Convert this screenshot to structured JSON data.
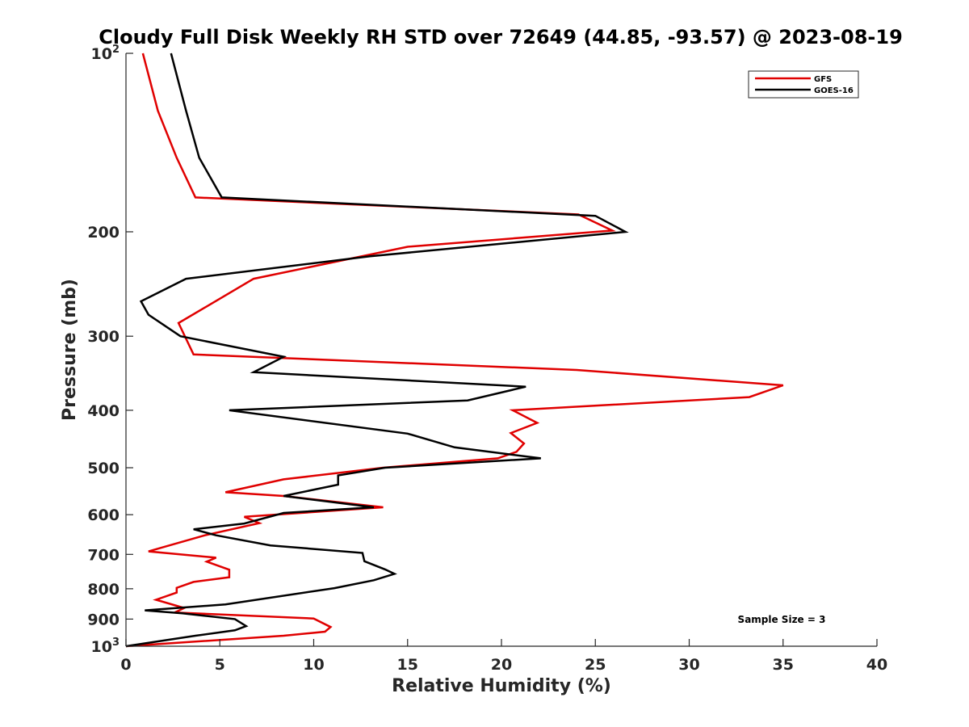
{
  "chart_data": {
    "type": "line",
    "title": "Cloudy Full Disk Weekly RH STD over 72649 (44.85, -93.57) @ 2023-08-19",
    "xlabel": "Relative Humidity (%)",
    "ylabel": "Pressure (mb)",
    "xlim": [
      0,
      40
    ],
    "ylim": [
      100,
      1000
    ],
    "y_scale": "log",
    "y_reversed": true,
    "grid": false,
    "legend_position": "top-right",
    "x_ticks": [
      "0",
      "5",
      "10",
      "15",
      "20",
      "25",
      "30",
      "35",
      "40"
    ],
    "y_ticks": [
      {
        "value": 100,
        "base": "10",
        "exp": "2"
      },
      {
        "value": 200,
        "label": "200"
      },
      {
        "value": 300,
        "label": "300"
      },
      {
        "value": 400,
        "label": "400"
      },
      {
        "value": 500,
        "label": "500"
      },
      {
        "value": 600,
        "label": "600"
      },
      {
        "value": 700,
        "label": "700"
      },
      {
        "value": 800,
        "label": "800"
      },
      {
        "value": 900,
        "label": "900"
      },
      {
        "value": 1000,
        "base": "10",
        "exp": "3"
      }
    ],
    "annotation": "Sample Size = 3",
    "series": [
      {
        "name": "GFS",
        "color": "#e00000",
        "points": [
          [
            0.9,
            100
          ],
          [
            1.7,
            125
          ],
          [
            2.7,
            150
          ],
          [
            3.7,
            175
          ],
          [
            24.1,
            187
          ],
          [
            25.9,
            199
          ],
          [
            15.0,
            212
          ],
          [
            6.8,
            240
          ],
          [
            2.8,
            285
          ],
          [
            3.6,
            322
          ],
          [
            24.0,
            342
          ],
          [
            35.0,
            363
          ],
          [
            33.2,
            380
          ],
          [
            20.6,
            400
          ],
          [
            21.9,
            420
          ],
          [
            20.5,
            437
          ],
          [
            21.2,
            455
          ],
          [
            20.8,
            470
          ],
          [
            19.8,
            482
          ],
          [
            13.7,
            500
          ],
          [
            8.4,
            523
          ],
          [
            5.3,
            550
          ],
          [
            8.4,
            558
          ],
          [
            13.7,
            583
          ],
          [
            6.3,
            605
          ],
          [
            7.1,
            620
          ],
          [
            4.2,
            650
          ],
          [
            1.2,
            692
          ],
          [
            4.8,
            709
          ],
          [
            4.3,
            720
          ],
          [
            5.5,
            743
          ],
          [
            5.5,
            765
          ],
          [
            3.6,
            779
          ],
          [
            2.7,
            797
          ],
          [
            2.7,
            812
          ],
          [
            1.6,
            835
          ],
          [
            3.1,
            862
          ],
          [
            2.6,
            877
          ],
          [
            10.0,
            898
          ],
          [
            10.9,
            928
          ],
          [
            10.6,
            945
          ],
          [
            8.4,
            960
          ],
          [
            0.0,
            1000
          ]
        ]
      },
      {
        "name": "GOES-16",
        "color": "#000000",
        "points": [
          [
            2.4,
            100
          ],
          [
            3.2,
            125
          ],
          [
            3.9,
            150
          ],
          [
            5.1,
            175
          ],
          [
            25.0,
            188
          ],
          [
            26.6,
            200
          ],
          [
            13.0,
            220
          ],
          [
            3.2,
            240
          ],
          [
            0.8,
            262
          ],
          [
            1.2,
            276
          ],
          [
            2.9,
            300
          ],
          [
            8.4,
            325
          ],
          [
            6.8,
            345
          ],
          [
            21.3,
            365
          ],
          [
            18.2,
            385
          ],
          [
            5.5,
            400
          ],
          [
            15.0,
            438
          ],
          [
            17.5,
            462
          ],
          [
            22.1,
            482
          ],
          [
            13.8,
            500
          ],
          [
            11.3,
            515
          ],
          [
            11.3,
            534
          ],
          [
            8.4,
            558
          ],
          [
            13.2,
            583
          ],
          [
            8.4,
            596
          ],
          [
            6.3,
            621
          ],
          [
            3.6,
            635
          ],
          [
            4.8,
            650
          ],
          [
            7.7,
            676
          ],
          [
            12.6,
            696
          ],
          [
            12.7,
            719
          ],
          [
            13.8,
            742
          ],
          [
            14.3,
            755
          ],
          [
            13.2,
            774
          ],
          [
            11.1,
            798
          ],
          [
            5.3,
            850
          ],
          [
            1.0,
            870
          ],
          [
            3.0,
            880
          ],
          [
            5.8,
            900
          ],
          [
            6.4,
            925
          ],
          [
            5.8,
            940
          ],
          [
            3.7,
            960
          ],
          [
            0.0,
            1000
          ]
        ]
      }
    ]
  }
}
